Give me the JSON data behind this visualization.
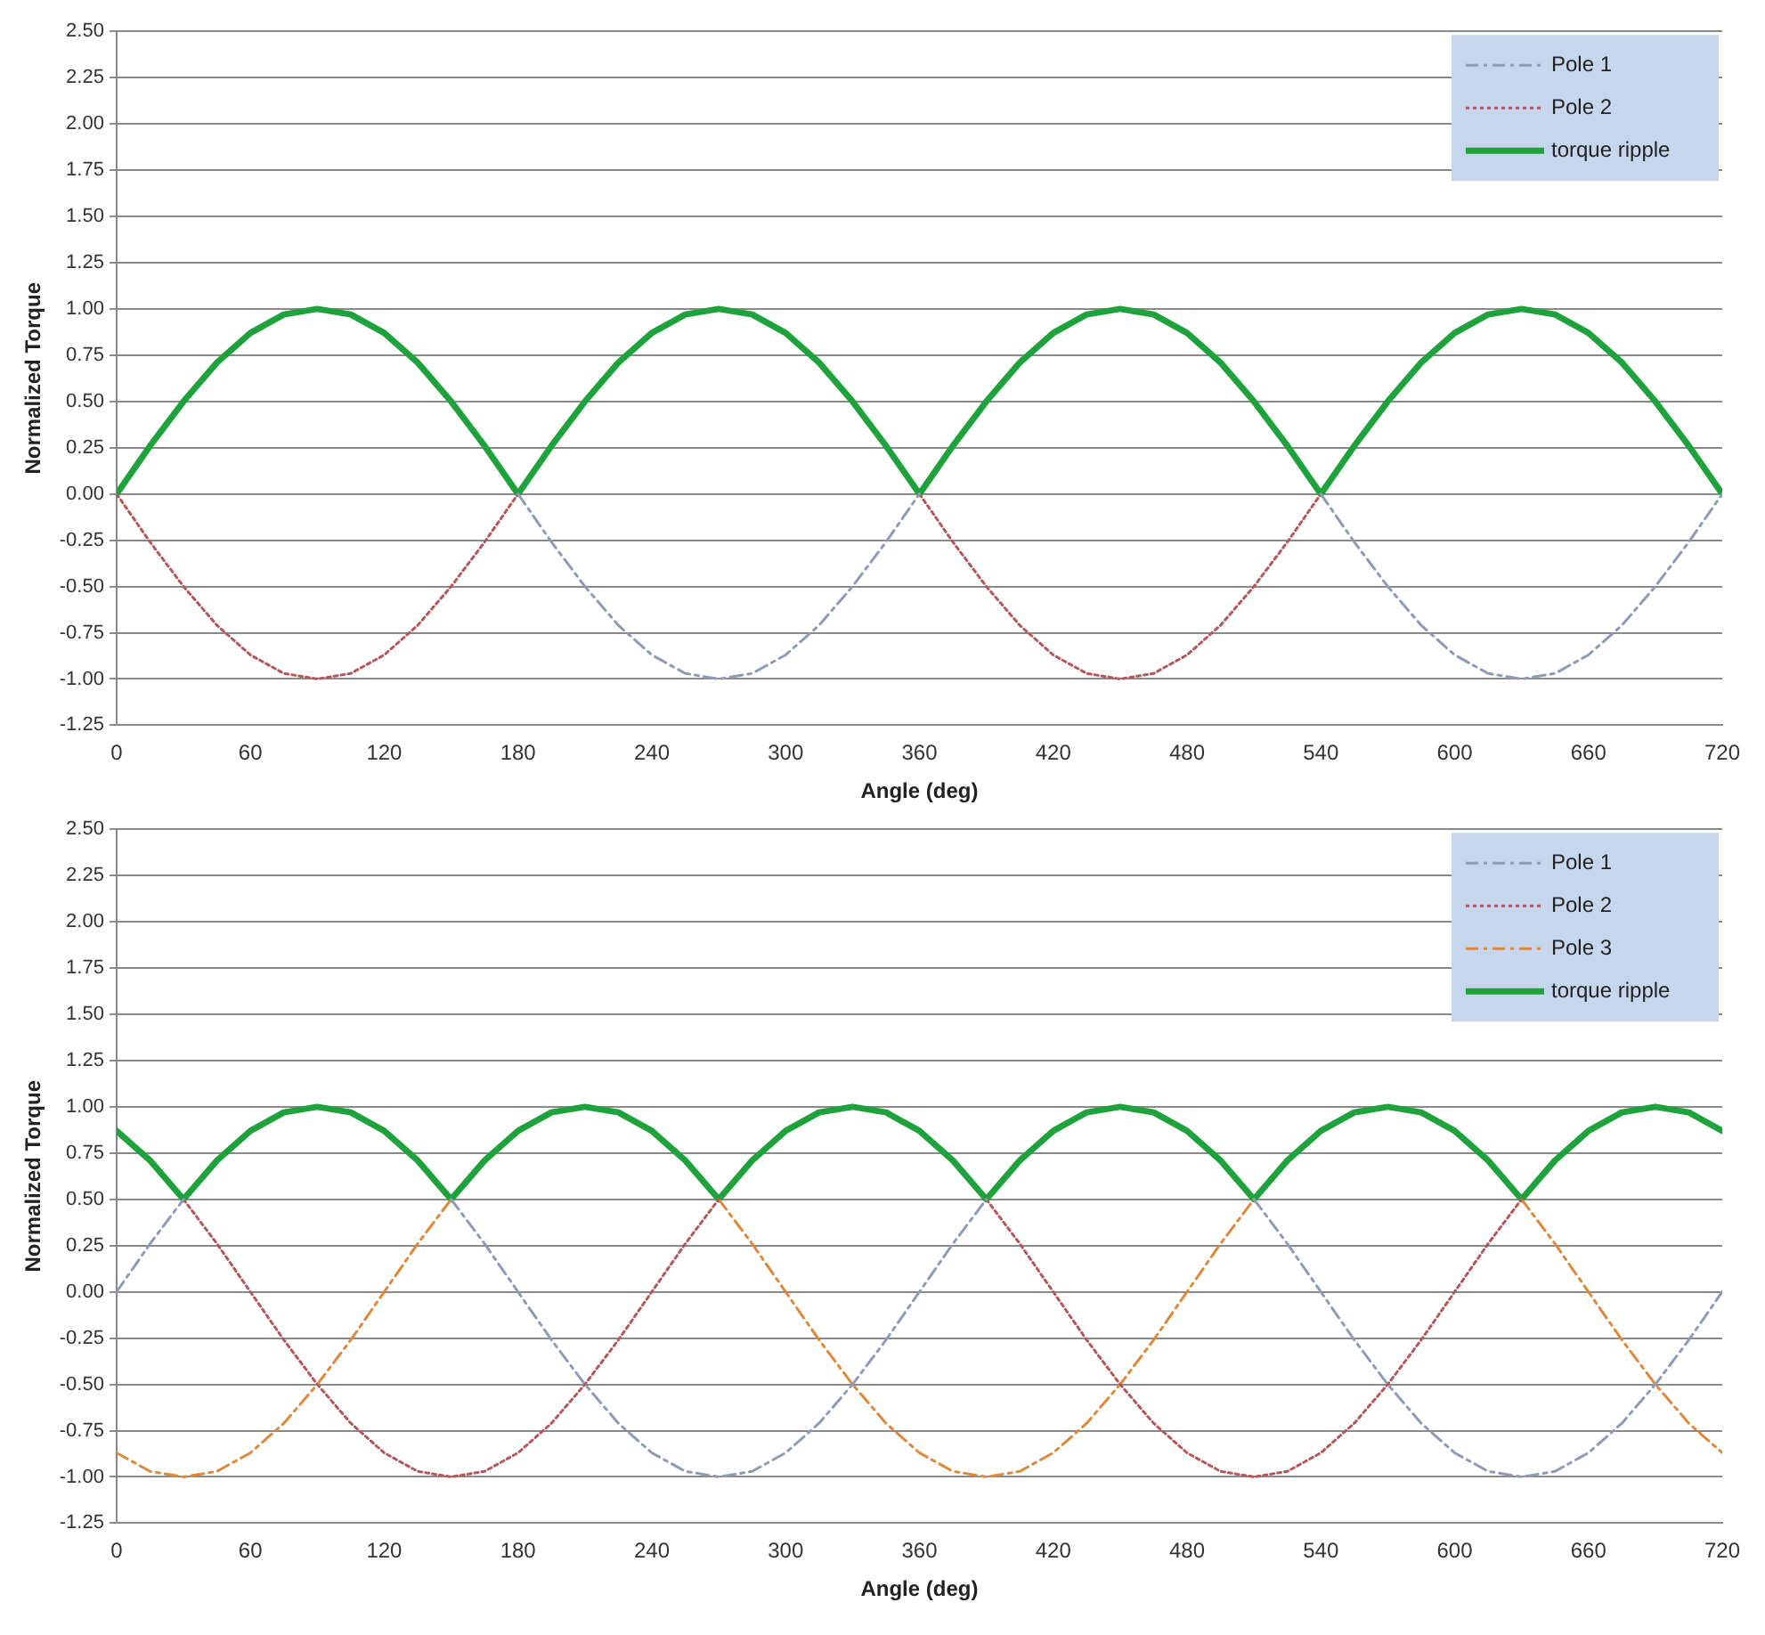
{
  "chart_data": [
    {
      "type": "line",
      "xlabel": "Angle (deg)",
      "ylabel": "Normalized Torque",
      "x": [
        0,
        15,
        30,
        45,
        60,
        75,
        90,
        105,
        120,
        135,
        150,
        165,
        180,
        195,
        210,
        225,
        240,
        255,
        270,
        285,
        300,
        315,
        330,
        345,
        360,
        375,
        390,
        405,
        420,
        435,
        450,
        465,
        480,
        495,
        510,
        525,
        540,
        555,
        570,
        585,
        600,
        615,
        630,
        645,
        660,
        675,
        690,
        705,
        720
      ],
      "xlim": [
        0,
        720
      ],
      "xticks": [
        0,
        60,
        120,
        180,
        240,
        300,
        360,
        420,
        480,
        540,
        600,
        660,
        720
      ],
      "ylim": [
        -1.25,
        2.5
      ],
      "yticks": [
        {
          "value": -1.25,
          "label": "-1.25"
        },
        {
          "value": -1,
          "label": "-1.00"
        },
        {
          "value": -0.75,
          "label": "-0.75"
        },
        {
          "value": -0.5,
          "label": "-0.50"
        },
        {
          "value": -0.25,
          "label": "-0.25"
        },
        {
          "value": 0,
          "label": "0.00"
        },
        {
          "value": 0.25,
          "label": "0.25"
        },
        {
          "value": 0.5,
          "label": "0.50"
        },
        {
          "value": 0.75,
          "label": "0.75"
        },
        {
          "value": 1,
          "label": "1.00"
        },
        {
          "value": 1.25,
          "label": "1.25"
        },
        {
          "value": 1.5,
          "label": "1.50"
        },
        {
          "value": 1.75,
          "label": "1.75"
        },
        {
          "value": 2,
          "label": "2.00"
        },
        {
          "value": 2.25,
          "label": "2.25"
        },
        {
          "value": 2.5,
          "label": "2.50"
        }
      ],
      "grid": "y",
      "legend": "top right",
      "marker": "none",
      "series": [
        {
          "name": "Pole 1",
          "color": "#8e9bb8",
          "line_style": "dashed",
          "values": [
            null,
            null,
            null,
            null,
            null,
            null,
            null,
            null,
            null,
            null,
            null,
            null,
            0,
            -0.26,
            -0.5,
            -0.71,
            -0.87,
            -0.97,
            -1,
            -0.97,
            -0.87,
            -0.71,
            -0.5,
            -0.26,
            0,
            null,
            null,
            null,
            null,
            null,
            null,
            null,
            null,
            null,
            null,
            null,
            0,
            -0.26,
            -0.5,
            -0.71,
            -0.87,
            -0.97,
            -1,
            -0.97,
            -0.87,
            -0.71,
            -0.5,
            -0.26,
            0
          ]
        },
        {
          "name": "Pole 2",
          "color": "#b5575a",
          "line_style": "dotted",
          "values": [
            0,
            -0.26,
            -0.5,
            -0.71,
            -0.87,
            -0.97,
            -1,
            -0.97,
            -0.87,
            -0.71,
            -0.5,
            -0.26,
            0,
            null,
            null,
            null,
            null,
            null,
            null,
            null,
            null,
            null,
            null,
            null,
            0,
            -0.26,
            -0.5,
            -0.71,
            -0.87,
            -0.97,
            -1,
            -0.97,
            -0.87,
            -0.71,
            -0.5,
            -0.26,
            0,
            null,
            null,
            null,
            null,
            null,
            null,
            null,
            null,
            null,
            null,
            null,
            null
          ]
        },
        {
          "name": "torque ripple",
          "color": "#1ea33c",
          "line_style": "solid",
          "values": [
            0,
            0.26,
            0.5,
            0.71,
            0.87,
            0.97,
            1,
            0.97,
            0.87,
            0.71,
            0.5,
            0.26,
            0,
            0.26,
            0.5,
            0.71,
            0.87,
            0.97,
            1,
            0.97,
            0.87,
            0.71,
            0.5,
            0.26,
            0,
            0.26,
            0.5,
            0.71,
            0.87,
            0.97,
            1,
            0.97,
            0.87,
            0.71,
            0.5,
            0.26,
            0,
            0.26,
            0.5,
            0.71,
            0.87,
            0.97,
            1,
            0.97,
            0.87,
            0.71,
            0.5,
            0.26,
            0
          ]
        }
      ]
    },
    {
      "type": "line",
      "xlabel": "Angle (deg)",
      "ylabel": "Normalized Torque",
      "x": [
        0,
        15,
        30,
        45,
        60,
        75,
        90,
        105,
        120,
        135,
        150,
        165,
        180,
        195,
        210,
        225,
        240,
        255,
        270,
        285,
        300,
        315,
        330,
        345,
        360,
        375,
        390,
        405,
        420,
        435,
        450,
        465,
        480,
        495,
        510,
        525,
        540,
        555,
        570,
        585,
        600,
        615,
        630,
        645,
        660,
        675,
        690,
        705,
        720
      ],
      "xlim": [
        0,
        720
      ],
      "xticks": [
        0,
        60,
        120,
        180,
        240,
        300,
        360,
        420,
        480,
        540,
        600,
        660,
        720
      ],
      "ylim": [
        -1.25,
        2.5
      ],
      "yticks": [
        {
          "value": -1.25,
          "label": "-1.25"
        },
        {
          "value": -1,
          "label": "-1.00"
        },
        {
          "value": -0.75,
          "label": "-0.75"
        },
        {
          "value": -0.5,
          "label": "-0.50"
        },
        {
          "value": -0.25,
          "label": "-0.25"
        },
        {
          "value": 0,
          "label": "0.00"
        },
        {
          "value": 0.25,
          "label": "0.25"
        },
        {
          "value": 0.5,
          "label": "0.50"
        },
        {
          "value": 0.75,
          "label": "0.75"
        },
        {
          "value": 1,
          "label": "1.00"
        },
        {
          "value": 1.25,
          "label": "1.25"
        },
        {
          "value": 1.5,
          "label": "1.50"
        },
        {
          "value": 1.75,
          "label": "1.75"
        },
        {
          "value": 2,
          "label": "2.00"
        },
        {
          "value": 2.25,
          "label": "2.25"
        },
        {
          "value": 2.5,
          "label": "2.50"
        }
      ],
      "grid": "y",
      "legend": "top right",
      "marker": "none",
      "series": [
        {
          "name": "Pole 1",
          "color": "#8e9bb8",
          "line_style": "dashed",
          "values": [
            0,
            0.26,
            0.5,
            null,
            null,
            null,
            null,
            null,
            null,
            null,
            0.5,
            0.26,
            0,
            -0.26,
            -0.5,
            -0.71,
            -0.87,
            -0.97,
            -1,
            -0.97,
            -0.87,
            -0.71,
            -0.5,
            -0.26,
            0,
            0.26,
            0.5,
            null,
            null,
            null,
            null,
            null,
            null,
            null,
            0.5,
            0.26,
            0,
            -0.26,
            -0.5,
            -0.71,
            -0.87,
            -0.97,
            -1,
            -0.97,
            -0.87,
            -0.71,
            -0.5,
            -0.26,
            0
          ]
        },
        {
          "name": "Pole 2",
          "color": "#b5575a",
          "line_style": "dotted",
          "values": [
            null,
            null,
            0.5,
            0.26,
            0,
            -0.26,
            -0.5,
            -0.71,
            -0.87,
            -0.97,
            -1,
            -0.97,
            -0.87,
            -0.71,
            -0.5,
            -0.26,
            0,
            0.26,
            0.5,
            null,
            null,
            null,
            null,
            null,
            null,
            null,
            0.5,
            0.26,
            0,
            -0.26,
            -0.5,
            -0.71,
            -0.87,
            -0.97,
            -1,
            -0.97,
            -0.87,
            -0.71,
            -0.5,
            -0.26,
            0,
            0.26,
            0.5,
            null,
            null,
            null,
            null,
            null,
            null
          ]
        },
        {
          "name": "Pole 3",
          "color": "#e0883a",
          "line_style": "dashed",
          "values": [
            -0.87,
            -0.97,
            -1,
            -0.97,
            -0.87,
            -0.71,
            -0.5,
            -0.26,
            0,
            0.26,
            0.5,
            null,
            null,
            null,
            null,
            null,
            null,
            null,
            0.5,
            0.26,
            0,
            -0.26,
            -0.5,
            -0.71,
            -0.87,
            -0.97,
            -1,
            -0.97,
            -0.87,
            -0.71,
            -0.5,
            -0.26,
            0,
            0.26,
            0.5,
            null,
            null,
            null,
            null,
            null,
            null,
            null,
            0.5,
            0.26,
            0,
            -0.26,
            -0.5,
            -0.71,
            -0.87
          ]
        },
        {
          "name": "torque ripple",
          "color": "#1ea33c",
          "line_style": "solid",
          "values": [
            0.87,
            0.71,
            0.5,
            0.71,
            0.87,
            0.97,
            1,
            0.97,
            0.87,
            0.71,
            0.5,
            0.71,
            0.87,
            0.97,
            1,
            0.97,
            0.87,
            0.71,
            0.5,
            0.71,
            0.87,
            0.97,
            1,
            0.97,
            0.87,
            0.71,
            0.5,
            0.71,
            0.87,
            0.97,
            1,
            0.97,
            0.87,
            0.71,
            0.5,
            0.71,
            0.87,
            0.97,
            1,
            0.97,
            0.87,
            0.71,
            0.5,
            0.71,
            0.87,
            0.97,
            1,
            0.97,
            0.87
          ]
        }
      ]
    }
  ]
}
